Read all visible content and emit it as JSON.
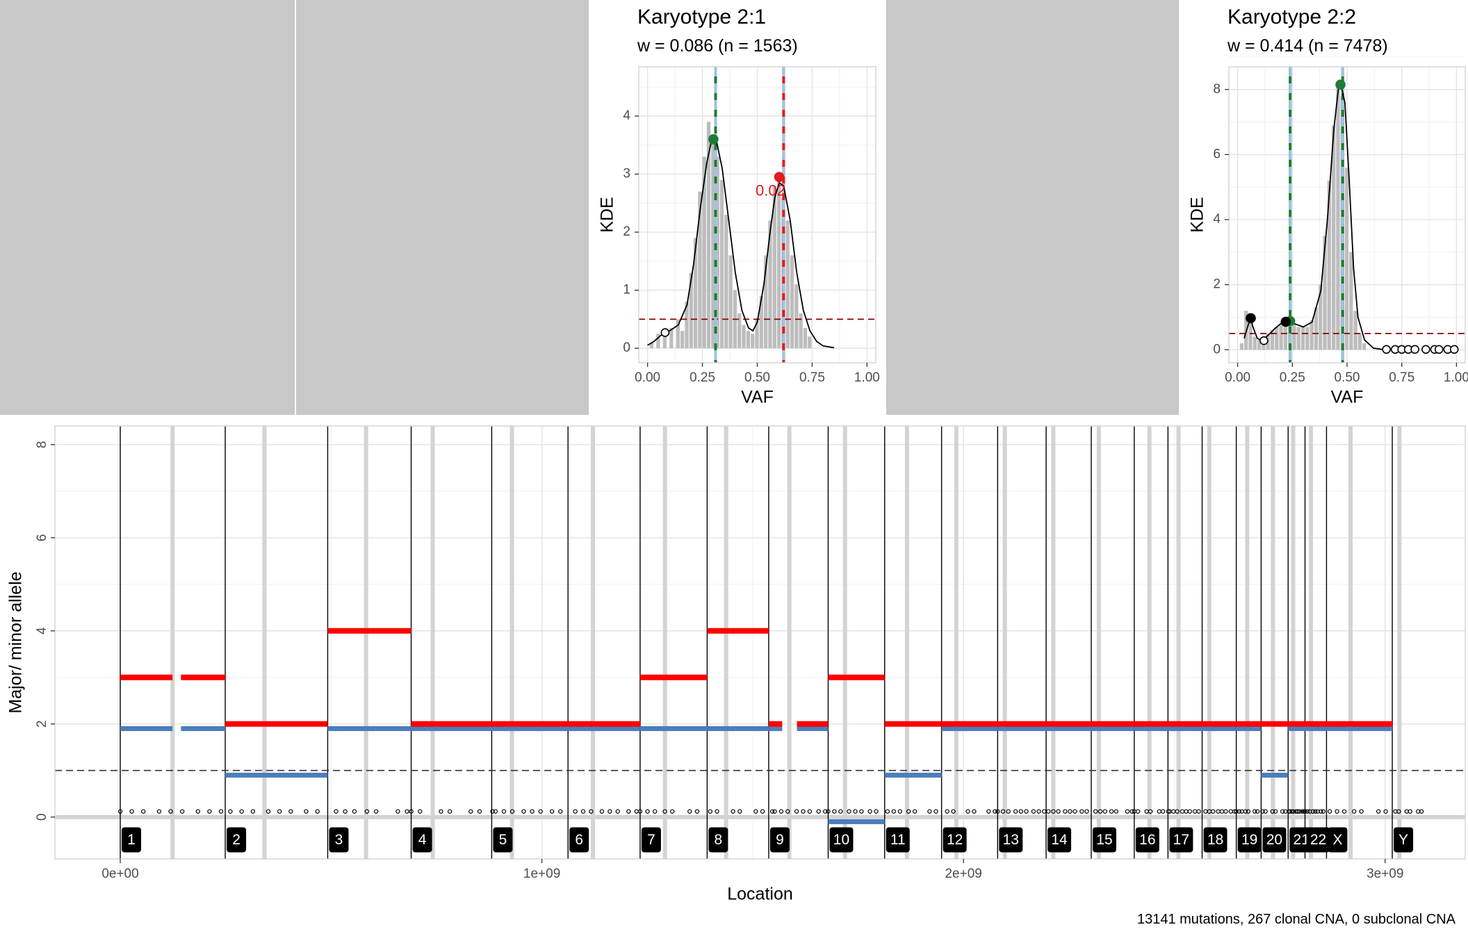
{
  "colors": {
    "major": "#ff0000",
    "minor": "#4a7ebb",
    "clonal_peak": "#1e7b34",
    "subclonal_peak": "#e41a1c",
    "peak_band": "#9ec3e6",
    "hist": "#bdbdbd",
    "empty_panel": "#c8c8c8",
    "threshold": "#8b0000",
    "mutation_orange": "#ff9a1a"
  },
  "panels": [
    {
      "title": "Karyotype 2:1",
      "subtitle": "w = 0.086 (n = 1563)",
      "chart_data": {
        "type": "histogram+density",
        "xlabel": "VAF",
        "ylabel": "KDE",
        "xlim": [
          -0.04,
          1.04
        ],
        "ylim": [
          -0.25,
          4.85
        ],
        "xticks": [
          "0.00",
          "0.25",
          "0.50",
          "0.75",
          "1.00"
        ],
        "yticks": [
          "0",
          "1",
          "2",
          "3",
          "4"
        ],
        "grid": true,
        "threshold": 0.5,
        "density": [
          [
            0.0,
            0.05
          ],
          [
            0.03,
            0.12
          ],
          [
            0.06,
            0.22
          ],
          [
            0.08,
            0.27
          ],
          [
            0.1,
            0.3
          ],
          [
            0.14,
            0.4
          ],
          [
            0.18,
            0.75
          ],
          [
            0.21,
            1.45
          ],
          [
            0.24,
            2.4
          ],
          [
            0.27,
            3.2
          ],
          [
            0.29,
            3.55
          ],
          [
            0.3,
            3.6
          ],
          [
            0.315,
            3.55
          ],
          [
            0.34,
            3.1
          ],
          [
            0.37,
            2.2
          ],
          [
            0.4,
            1.3
          ],
          [
            0.43,
            0.65
          ],
          [
            0.46,
            0.35
          ],
          [
            0.48,
            0.3
          ],
          [
            0.5,
            0.45
          ],
          [
            0.53,
            1.1
          ],
          [
            0.56,
            2.05
          ],
          [
            0.58,
            2.6
          ],
          [
            0.6,
            2.85
          ],
          [
            0.62,
            2.8
          ],
          [
            0.65,
            2.2
          ],
          [
            0.68,
            1.3
          ],
          [
            0.71,
            0.65
          ],
          [
            0.74,
            0.3
          ],
          [
            0.77,
            0.12
          ],
          [
            0.8,
            0.04
          ],
          [
            0.85,
            0.01
          ]
        ],
        "hist": [
          [
            0.02,
            0.1
          ],
          [
            0.05,
            0.25
          ],
          [
            0.08,
            0.3
          ],
          [
            0.11,
            0.35
          ],
          [
            0.14,
            0.5
          ],
          [
            0.16,
            0.3
          ],
          [
            0.18,
            0.8
          ],
          [
            0.2,
            1.3
          ],
          [
            0.22,
            1.9
          ],
          [
            0.24,
            2.7
          ],
          [
            0.26,
            3.3
          ],
          [
            0.28,
            3.9
          ],
          [
            0.3,
            3.6
          ],
          [
            0.32,
            3.3
          ],
          [
            0.34,
            2.9
          ],
          [
            0.36,
            2.3
          ],
          [
            0.38,
            1.6
          ],
          [
            0.4,
            1.0
          ],
          [
            0.42,
            0.6
          ],
          [
            0.44,
            0.4
          ],
          [
            0.46,
            0.3
          ],
          [
            0.48,
            0.25
          ],
          [
            0.5,
            0.5
          ],
          [
            0.52,
            0.9
          ],
          [
            0.54,
            1.6
          ],
          [
            0.56,
            2.2
          ],
          [
            0.58,
            2.8
          ],
          [
            0.6,
            3.0
          ],
          [
            0.62,
            2.6
          ],
          [
            0.64,
            2.2
          ],
          [
            0.66,
            1.6
          ],
          [
            0.68,
            1.1
          ],
          [
            0.7,
            0.6
          ],
          [
            0.72,
            0.35
          ],
          [
            0.74,
            0.2
          ]
        ],
        "peak_lines": [
          {
            "x": 0.31,
            "color": "clonal_peak"
          },
          {
            "x": 0.62,
            "color": "subclonal_peak"
          }
        ],
        "points": [
          {
            "x": 0.3,
            "y": 3.6,
            "filled": true,
            "color": "clonal_peak"
          },
          {
            "x": 0.6,
            "y": 2.95,
            "filled": true,
            "color": "subclonal_peak"
          },
          {
            "x": 0.08,
            "y": 0.27,
            "filled": false,
            "color": "#000000"
          }
        ],
        "annotations": [
          {
            "x": 0.56,
            "y": 2.7,
            "text": "0.02",
            "color": "subclonal_peak"
          }
        ]
      }
    },
    {
      "title": "Karyotype 2:2",
      "subtitle": "w = 0.414 (n = 7478)",
      "chart_data": {
        "type": "histogram+density",
        "xlabel": "VAF",
        "ylabel": "KDE",
        "xlim": [
          -0.04,
          1.04
        ],
        "ylim": [
          -0.4,
          8.7
        ],
        "xticks": [
          "0.00",
          "0.25",
          "0.50",
          "0.75",
          "1.00"
        ],
        "yticks": [
          "0",
          "2",
          "4",
          "6",
          "8"
        ],
        "grid": true,
        "threshold": 0.5,
        "density": [
          [
            0.03,
            0.35
          ],
          [
            0.05,
            0.8
          ],
          [
            0.06,
            0.97
          ],
          [
            0.07,
            0.7
          ],
          [
            0.09,
            0.35
          ],
          [
            0.11,
            0.28
          ],
          [
            0.14,
            0.45
          ],
          [
            0.17,
            0.65
          ],
          [
            0.2,
            0.82
          ],
          [
            0.23,
            0.88
          ],
          [
            0.26,
            0.8
          ],
          [
            0.3,
            0.7
          ],
          [
            0.34,
            0.85
          ],
          [
            0.38,
            1.8
          ],
          [
            0.41,
            4.0
          ],
          [
            0.44,
            6.8
          ],
          [
            0.46,
            8.0
          ],
          [
            0.47,
            8.2
          ],
          [
            0.49,
            7.6
          ],
          [
            0.51,
            5.2
          ],
          [
            0.53,
            2.5
          ],
          [
            0.55,
            1.0
          ],
          [
            0.58,
            0.3
          ],
          [
            0.62,
            0.05
          ],
          [
            0.66,
            0.01
          ]
        ],
        "hist": [
          [
            0.02,
            0.2
          ],
          [
            0.04,
            1.2
          ],
          [
            0.06,
            0.9
          ],
          [
            0.08,
            0.4
          ],
          [
            0.1,
            0.3
          ],
          [
            0.12,
            0.3
          ],
          [
            0.14,
            0.5
          ],
          [
            0.16,
            0.6
          ],
          [
            0.18,
            0.7
          ],
          [
            0.2,
            0.8
          ],
          [
            0.22,
            0.9
          ],
          [
            0.24,
            0.85
          ],
          [
            0.26,
            0.8
          ],
          [
            0.28,
            0.7
          ],
          [
            0.3,
            0.7
          ],
          [
            0.32,
            0.7
          ],
          [
            0.34,
            0.9
          ],
          [
            0.36,
            1.3
          ],
          [
            0.38,
            2.0
          ],
          [
            0.4,
            3.5
          ],
          [
            0.42,
            5.2
          ],
          [
            0.44,
            6.9
          ],
          [
            0.46,
            8.1
          ],
          [
            0.48,
            7.8
          ],
          [
            0.5,
            5.6
          ],
          [
            0.52,
            3.0
          ],
          [
            0.54,
            1.2
          ],
          [
            0.56,
            0.5
          ],
          [
            0.58,
            0.2
          ]
        ],
        "peak_lines": [
          {
            "x": 0.24,
            "color": "clonal_peak"
          },
          {
            "x": 0.48,
            "color": "clonal_peak"
          }
        ],
        "points": [
          {
            "x": 0.24,
            "y": 0.88,
            "filled": true,
            "color": "clonal_peak"
          },
          {
            "x": 0.47,
            "y": 8.15,
            "filled": true,
            "color": "clonal_peak"
          },
          {
            "x": 0.06,
            "y": 0.97,
            "filled": true,
            "color": "#000000"
          },
          {
            "x": 0.22,
            "y": 0.86,
            "filled": true,
            "color": "#000000"
          },
          {
            "x": 0.12,
            "y": 0.28,
            "filled": false,
            "color": "#000000"
          },
          {
            "x": 0.68,
            "y": 0.01,
            "filled": false,
            "color": "#000000"
          },
          {
            "x": 0.72,
            "y": 0.01,
            "filled": false,
            "color": "#000000"
          },
          {
            "x": 0.75,
            "y": 0.01,
            "filled": false,
            "color": "#000000"
          },
          {
            "x": 0.78,
            "y": 0.01,
            "filled": false,
            "color": "#000000"
          },
          {
            "x": 0.81,
            "y": 0.01,
            "filled": false,
            "color": "#000000"
          },
          {
            "x": 0.86,
            "y": 0.01,
            "filled": false,
            "color": "#000000"
          },
          {
            "x": 0.9,
            "y": 0.01,
            "filled": false,
            "color": "#000000"
          },
          {
            "x": 0.92,
            "y": 0.01,
            "filled": false,
            "color": "#000000"
          },
          {
            "x": 0.96,
            "y": 0.01,
            "filled": false,
            "color": "#000000"
          },
          {
            "x": 0.99,
            "y": 0.01,
            "filled": false,
            "color": "#000000"
          }
        ],
        "annotations": []
      }
    }
  ],
  "genome": {
    "xlabel": "Location",
    "ylabel": "Major/ minor allele",
    "xlim": [
      -155000000.0,
      3190000000.0
    ],
    "ylim": [
      -0.9,
      8.4
    ],
    "xticks": [
      {
        "v": 0,
        "label": "0e+00"
      },
      {
        "v": 1000000000.0,
        "label": "1e+09"
      },
      {
        "v": 2000000000.0,
        "label": "2e+09"
      },
      {
        "v": 3000000000.0,
        "label": "3e+09"
      }
    ],
    "yticks": [
      "0",
      "2",
      "4",
      "6",
      "8"
    ],
    "threshold": 1,
    "caption": "13141 mutations, 267 clonal CNA, 0 subclonal CNA",
    "chromosomes": [
      {
        "label": "1",
        "start": 0,
        "cen": 124000000.0
      },
      {
        "label": "2",
        "start": 249000000.0,
        "cen": 342000000.0
      },
      {
        "label": "3",
        "start": 492000000.0,
        "cen": 583000000.0
      },
      {
        "label": "4",
        "start": 690000000.0,
        "cen": 741000000.0
      },
      {
        "label": "5",
        "start": 881000000.0,
        "cen": 929000000.0
      },
      {
        "label": "6",
        "start": 1062000000.0,
        "cen": 1121000000.0
      },
      {
        "label": "7",
        "start": 1233000000.0,
        "cen": 1292000000.0
      },
      {
        "label": "8",
        "start": 1392000000.0,
        "cen": 1437000000.0
      },
      {
        "label": "9",
        "start": 1538000000.0,
        "cen": 1587000000.0
      },
      {
        "label": "10",
        "start": 1679000000.0,
        "cen": 1719000000.0
      },
      {
        "label": "11",
        "start": 1813000000.0,
        "cen": 1866000000.0
      },
      {
        "label": "12",
        "start": 1948000000.0,
        "cen": 1983000000.0
      },
      {
        "label": "13",
        "start": 2081000000.0,
        "cen": 2098000000.0
      },
      {
        "label": "14",
        "start": 2196000000.0,
        "cen": 2213000000.0
      },
      {
        "label": "15",
        "start": 2303000000.0,
        "cen": 2321000000.0
      },
      {
        "label": "16",
        "start": 2405000000.0,
        "cen": 2441000000.0
      },
      {
        "label": "17",
        "start": 2485000000.0,
        "cen": 2510000000.0
      },
      {
        "label": "18",
        "start": 2566000000.0,
        "cen": 2583000000.0
      },
      {
        "label": "19",
        "start": 2647000000.0,
        "cen": 2673000000.0
      },
      {
        "label": "20",
        "start": 2706000000.0,
        "cen": 2734000000.0
      },
      {
        "label": "21",
        "start": 2770000000.0,
        "cen": 2782000000.0
      },
      {
        "label": "22",
        "start": 2810000000.0,
        "cen": 2824000000.0
      },
      {
        "label": "X",
        "start": 2861000000.0,
        "cen": 2918000000.0
      },
      {
        "label": "Y",
        "start": 3017000000.0,
        "cen": 3034000000.0
      }
    ],
    "segments": [
      {
        "s": 0,
        "e": 124000000.0,
        "major": 3,
        "minor": 1.9
      },
      {
        "s": 144000000.0,
        "e": 249000000.0,
        "major": 3,
        "minor": 1.9
      },
      {
        "s": 249000000.0,
        "e": 492000000.0,
        "major": 2,
        "minor": 0.9
      },
      {
        "s": 492000000.0,
        "e": 690000000.0,
        "major": 4,
        "minor": 1.9
      },
      {
        "s": 690000000.0,
        "e": 1233000000.0,
        "major": 2,
        "minor": 1.9
      },
      {
        "s": 1233000000.0,
        "e": 1392000000.0,
        "major": 3,
        "minor": 1.9
      },
      {
        "s": 1392000000.0,
        "e": 1538000000.0,
        "major": 4,
        "minor": 1.9
      },
      {
        "s": 1538000000.0,
        "e": 1570000000.0,
        "major": 2,
        "minor": 1.9
      },
      {
        "s": 1605000000.0,
        "e": 1679000000.0,
        "major": 2,
        "minor": 1.9
      },
      {
        "s": 1679000000.0,
        "e": 1813000000.0,
        "major": 3,
        "minor": -0.1
      },
      {
        "s": 1813000000.0,
        "e": 1948000000.0,
        "major": 2,
        "minor": 0.9
      },
      {
        "s": 1948000000.0,
        "e": 2081000000.0,
        "major": 2,
        "minor": 1.9
      },
      {
        "s": 2081000000.0,
        "e": 2196000000.0,
        "major": 2,
        "minor": 1.9
      },
      {
        "s": 2196000000.0,
        "e": 2303000000.0,
        "major": 2,
        "minor": 1.9
      },
      {
        "s": 2303000000.0,
        "e": 2405000000.0,
        "major": 2,
        "minor": 1.9
      },
      {
        "s": 2405000000.0,
        "e": 2485000000.0,
        "major": 2,
        "minor": 1.9
      },
      {
        "s": 2485000000.0,
        "e": 2566000000.0,
        "major": 2,
        "minor": 1.9
      },
      {
        "s": 2566000000.0,
        "e": 2647000000.0,
        "major": 2,
        "minor": 1.9
      },
      {
        "s": 2647000000.0,
        "e": 2706000000.0,
        "major": 2,
        "minor": 1.9
      },
      {
        "s": 2706000000.0,
        "e": 2770000000.0,
        "major": 2,
        "minor": 0.9
      },
      {
        "s": 2770000000.0,
        "e": 2810000000.0,
        "major": 2,
        "minor": 1.9
      },
      {
        "s": 2810000000.0,
        "e": 2861000000.0,
        "major": 2,
        "minor": 1.9
      },
      {
        "s": 2861000000.0,
        "e": 3017000000.0,
        "major": 2,
        "minor": 1.9
      }
    ]
  }
}
